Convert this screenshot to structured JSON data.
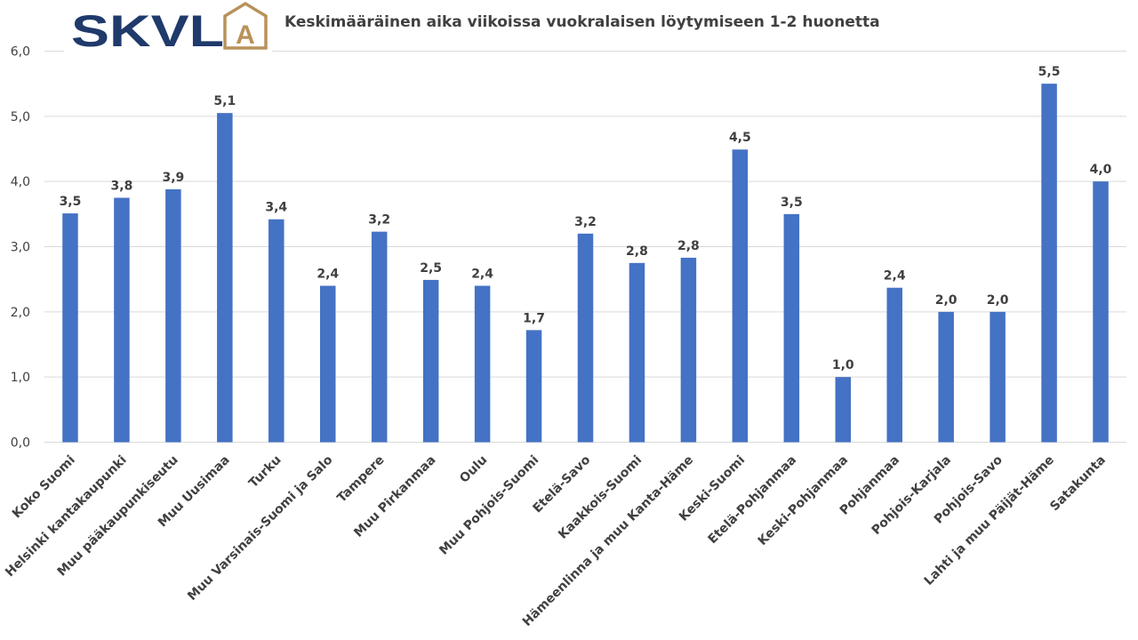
{
  "logo": {
    "text": "SKVL",
    "letter": "A",
    "color": "#1f3a6b",
    "accent": "#b8925a"
  },
  "chart_data": {
    "type": "bar",
    "title": "Keskimääräinen aika viikoissa vuokralaisen löytymiseen 1-2 huonetta",
    "categories": [
      "Koko Suomi",
      "Helsinki kantakaupunki",
      "Muu pääkaupunkiseutu",
      "Muu Uusimaa",
      "Turku",
      "Muu Varsinais-Suomi ja Salo",
      "Tampere",
      "Muu Pirkanmaa",
      "Oulu",
      "Muu Pohjois-Suomi",
      "Etelä-Savo",
      "Kaakkois-Suomi",
      "Hämeenlinna ja muu Kanta-Häme",
      "Keski-Suomi",
      "Etelä-Pohjanmaa",
      "Keski-Pohjanmaa",
      "Pohjanmaa",
      "Pohjois-Karjala",
      "Pohjois-Savo",
      "Lahti ja muu Päijät-Häme",
      "Satakunta"
    ],
    "values": [
      3.51,
      3.75,
      3.88,
      5.05,
      3.42,
      2.4,
      3.23,
      2.49,
      2.4,
      1.72,
      3.2,
      2.75,
      2.83,
      4.49,
      3.5,
      1.0,
      2.37,
      2.0,
      2.0,
      5.5,
      4.0
    ],
    "value_labels": [
      "3,5",
      "3,8",
      "3,9",
      "5,1",
      "3,4",
      "2,4",
      "3,2",
      "2,5",
      "2,4",
      "1,7",
      "3,2",
      "2,8",
      "2,8",
      "4,5",
      "3,5",
      "1,0",
      "2,4",
      "2,0",
      "2,0",
      "5,5",
      "4,0"
    ],
    "yticks": [
      0,
      1,
      2,
      3,
      4,
      5,
      6
    ],
    "ytick_labels": [
      "0,0",
      "1,0",
      "2,0",
      "3,0",
      "4,0",
      "5,0",
      "6,0"
    ],
    "ylim": [
      0,
      6
    ],
    "grid": true,
    "bar_color": "#4472c4",
    "grid_color": "#d9d9d9",
    "xlabel": "",
    "ylabel": ""
  }
}
